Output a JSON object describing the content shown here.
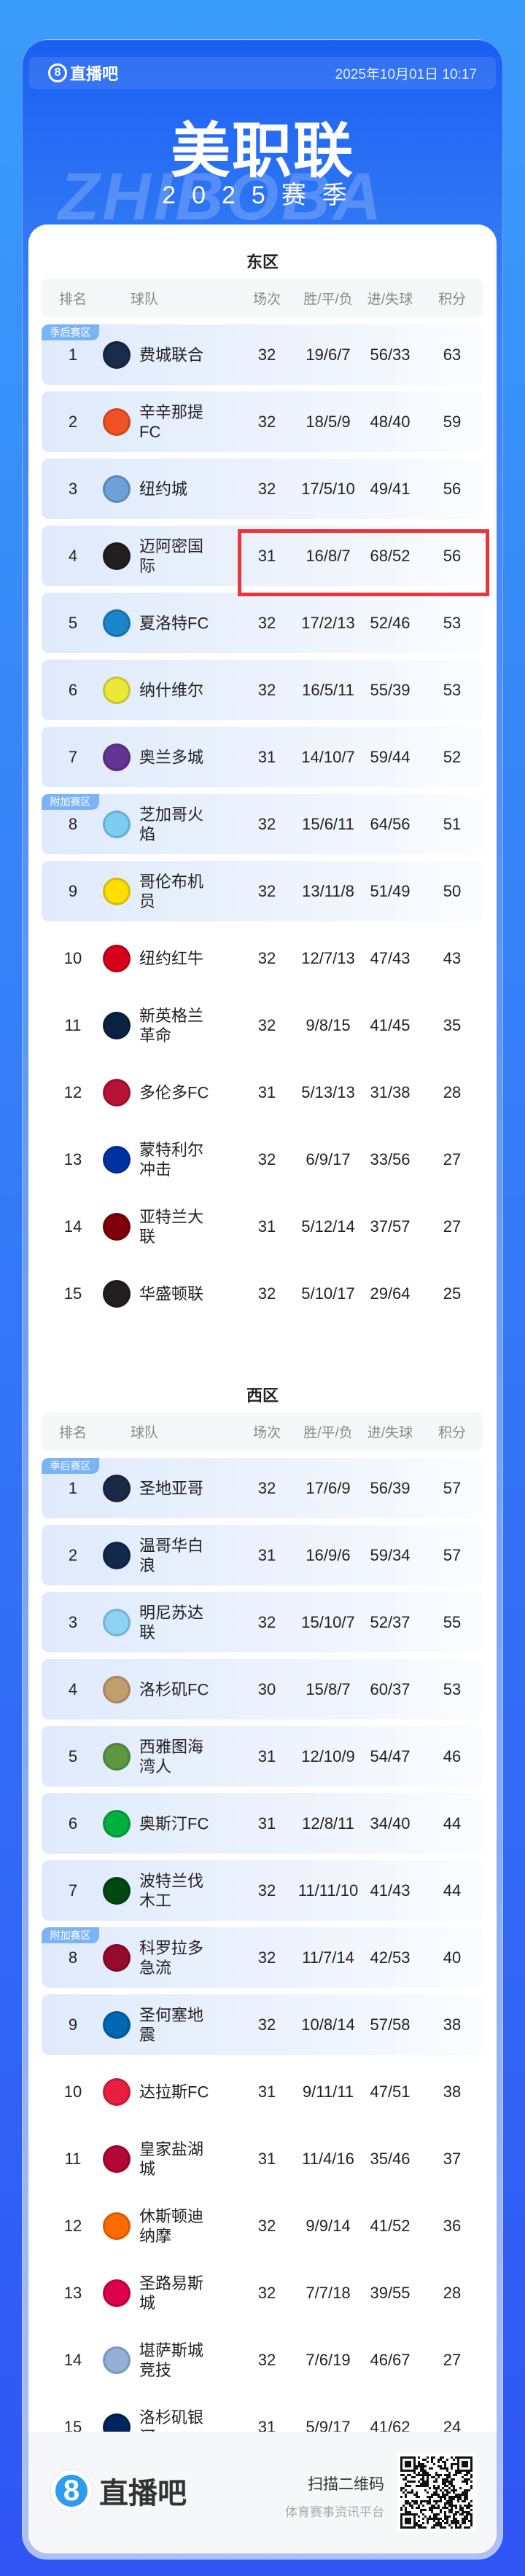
{
  "header": {
    "brand": "直播吧",
    "datetime": "2025年10月01日 10:17",
    "title": "美职联",
    "season": "2025赛季",
    "watermark": "ZHIBOBA"
  },
  "columns": [
    "排名",
    "球队",
    "场次",
    "胜/平/负",
    "进/失球",
    "积分"
  ],
  "badges": {
    "playoff": "季后赛区",
    "playin": "附加赛区"
  },
  "highlight_color": "#f0333a",
  "conferences": [
    {
      "name": "东区",
      "teams": [
        {
          "rank": "1",
          "name": "费城联合",
          "played": "32",
          "wdl": "19/6/7",
          "goals": "56/33",
          "pts": "63",
          "badge": "季后赛区",
          "logo_color": "#1a2a4a"
        },
        {
          "rank": "2",
          "name": "辛辛那提FC",
          "played": "32",
          "wdl": "18/5/9",
          "goals": "48/40",
          "pts": "59",
          "logo_color": "#f05323"
        },
        {
          "rank": "3",
          "name": "纽约城",
          "played": "32",
          "wdl": "17/5/10",
          "goals": "49/41",
          "pts": "56",
          "logo_color": "#6ca2d8"
        },
        {
          "rank": "4",
          "name": "迈阿密国际",
          "played": "31",
          "wdl": "16/8/7",
          "goals": "68/52",
          "pts": "56",
          "logo_color": "#231f20",
          "highlighted": true
        },
        {
          "rank": "5",
          "name": "夏洛特FC",
          "played": "32",
          "wdl": "17/2/13",
          "goals": "52/46",
          "pts": "53",
          "logo_color": "#1a85c8"
        },
        {
          "rank": "6",
          "name": "纳什维尔",
          "played": "32",
          "wdl": "16/5/11",
          "goals": "55/39",
          "pts": "53",
          "logo_color": "#ece83a"
        },
        {
          "rank": "7",
          "name": "奥兰多城",
          "played": "31",
          "wdl": "14/10/7",
          "goals": "59/44",
          "pts": "52",
          "logo_color": "#633492"
        },
        {
          "rank": "8",
          "name": "芝加哥火焰",
          "played": "32",
          "wdl": "15/6/11",
          "goals": "64/56",
          "pts": "51",
          "badge": "附加赛区",
          "logo_color": "#7ccdef"
        },
        {
          "rank": "9",
          "name": "哥伦布机员",
          "played": "32",
          "wdl": "13/11/8",
          "goals": "51/49",
          "pts": "50",
          "logo_color": "#fedd00"
        },
        {
          "rank": "10",
          "name": "纽约红牛",
          "played": "32",
          "wdl": "12/7/13",
          "goals": "47/43",
          "pts": "43",
          "logo_color": "#d6001c"
        },
        {
          "rank": "11",
          "name": "新英格兰革命",
          "played": "32",
          "wdl": "9/8/15",
          "goals": "41/45",
          "pts": "35",
          "logo_color": "#0a2240"
        },
        {
          "rank": "12",
          "name": "多伦多FC",
          "played": "31",
          "wdl": "5/13/13",
          "goals": "31/38",
          "pts": "28",
          "logo_color": "#b81137"
        },
        {
          "rank": "13",
          "name": "蒙特利尔冲击",
          "played": "32",
          "wdl": "6/9/17",
          "goals": "33/56",
          "pts": "27",
          "logo_color": "#0033a1"
        },
        {
          "rank": "14",
          "name": "亚特兰大联",
          "played": "31",
          "wdl": "5/12/14",
          "goals": "37/57",
          "pts": "27",
          "logo_color": "#80000a"
        },
        {
          "rank": "15",
          "name": "华盛顿联",
          "played": "32",
          "wdl": "5/10/17",
          "goals": "29/64",
          "pts": "25",
          "logo_color": "#231f20"
        }
      ]
    },
    {
      "name": "西区",
      "teams": [
        {
          "rank": "1",
          "name": "圣地亚哥",
          "played": "32",
          "wdl": "17/6/9",
          "goals": "56/39",
          "pts": "57",
          "badge": "季后赛区",
          "logo_color": "#1b2a44"
        },
        {
          "rank": "2",
          "name": "温哥华白浪",
          "played": "31",
          "wdl": "16/9/6",
          "goals": "59/34",
          "pts": "57",
          "logo_color": "#12284c"
        },
        {
          "rank": "3",
          "name": "明尼苏达联",
          "played": "32",
          "wdl": "15/10/7",
          "goals": "52/37",
          "pts": "55",
          "logo_color": "#8cd2f4"
        },
        {
          "rank": "4",
          "name": "洛杉矶FC",
          "played": "30",
          "wdl": "15/8/7",
          "goals": "60/37",
          "pts": "53",
          "logo_color": "#c39e6d"
        },
        {
          "rank": "5",
          "name": "西雅图海湾人",
          "played": "31",
          "wdl": "12/10/9",
          "goals": "54/47",
          "pts": "46",
          "logo_color": "#5d9741"
        },
        {
          "rank": "6",
          "name": "奥斯汀FC",
          "played": "31",
          "wdl": "12/8/11",
          "goals": "34/40",
          "pts": "44",
          "logo_color": "#00b140"
        },
        {
          "rank": "7",
          "name": "波特兰伐木工",
          "played": "32",
          "wdl": "11/11/10",
          "goals": "41/43",
          "pts": "44",
          "logo_color": "#004812"
        },
        {
          "rank": "8",
          "name": "科罗拉多急流",
          "played": "32",
          "wdl": "11/7/14",
          "goals": "42/53",
          "pts": "40",
          "badge": "附加赛区",
          "logo_color": "#960a2c"
        },
        {
          "rank": "9",
          "name": "圣何塞地震",
          "played": "32",
          "wdl": "10/8/14",
          "goals": "57/58",
          "pts": "38",
          "logo_color": "#0067b1"
        },
        {
          "rank": "10",
          "name": "达拉斯FC",
          "played": "31",
          "wdl": "9/11/11",
          "goals": "47/51",
          "pts": "38",
          "logo_color": "#e81f3e"
        },
        {
          "rank": "11",
          "name": "皇家盐湖城",
          "played": "31",
          "wdl": "11/4/16",
          "goals": "35/46",
          "pts": "37",
          "logo_color": "#b30838"
        },
        {
          "rank": "12",
          "name": "休斯顿迪纳摩",
          "played": "32",
          "wdl": "9/9/14",
          "goals": "41/52",
          "pts": "36",
          "logo_color": "#ff6b00"
        },
        {
          "rank": "13",
          "name": "圣路易斯城",
          "played": "32",
          "wdl": "7/7/18",
          "goals": "39/55",
          "pts": "28",
          "logo_color": "#dd004a"
        },
        {
          "rank": "14",
          "name": "堪萨斯城竞技",
          "played": "32",
          "wdl": "7/6/19",
          "goals": "46/67",
          "pts": "27",
          "logo_color": "#93b1d7"
        },
        {
          "rank": "15",
          "name": "洛杉矶银河",
          "played": "31",
          "wdl": "5/9/17",
          "goals": "41/62",
          "pts": "24",
          "logo_color": "#00245d"
        }
      ]
    }
  ],
  "footer": {
    "brand": "直播吧",
    "scan": "扫描二维码",
    "platform": "体育赛事资讯平台"
  }
}
